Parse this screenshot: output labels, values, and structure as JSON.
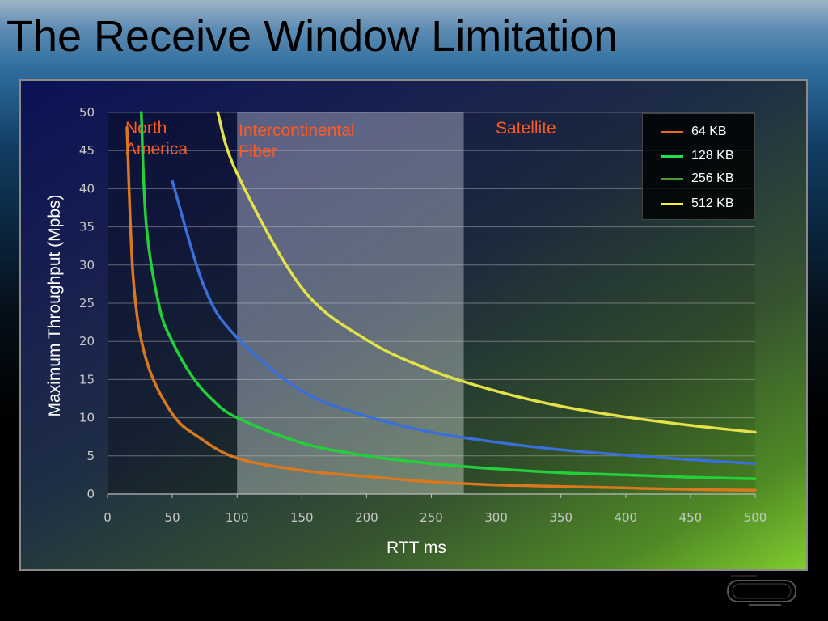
{
  "slide": {
    "title": "The Receive Window Limitation"
  },
  "chart_data": {
    "type": "line",
    "xlabel": "RTT ms",
    "ylabel": "Maximum Throughput (Mpbs)",
    "xlim": [
      0,
      500
    ],
    "ylim": [
      0,
      50
    ],
    "x_ticks": [
      "0",
      "50",
      "100",
      "150",
      "200",
      "250",
      "300",
      "350",
      "400",
      "450",
      "500"
    ],
    "y_ticks": [
      "0",
      "5",
      "10",
      "15",
      "20",
      "25",
      "30",
      "35",
      "40",
      "45",
      "50"
    ],
    "grid": "horizontal",
    "legend_position": "top-right",
    "regions": [
      {
        "label": "North America",
        "lines": [
          "North",
          "America"
        ],
        "x_range": [
          0,
          100
        ],
        "shade": "dark"
      },
      {
        "label": "Intercontinental Fiber",
        "lines": [
          "Intercontinental",
          "Fiber"
        ],
        "x_range": [
          100,
          275
        ],
        "shade": "light"
      },
      {
        "label": "Satellite",
        "lines": [
          "Satellite"
        ],
        "x_range": [
          275,
          500
        ],
        "shade": "medium"
      }
    ],
    "region_label_color": "#ff5a1f",
    "series": [
      {
        "name": "64 KB",
        "color": "#e86f1a",
        "window_kb": 64,
        "points": [
          [
            15,
            48
          ],
          [
            20,
            28
          ],
          [
            30,
            17.5
          ],
          [
            50,
            10.5
          ],
          [
            70,
            7.5
          ],
          [
            100,
            4.7
          ],
          [
            150,
            3.1
          ],
          [
            200,
            2.3
          ],
          [
            250,
            1.6
          ],
          [
            300,
            1.2
          ],
          [
            350,
            1.0
          ],
          [
            400,
            0.8
          ],
          [
            450,
            0.6
          ],
          [
            500,
            0.5
          ]
        ]
      },
      {
        "name": "128 KB",
        "color": "#22e04a",
        "window_kb": 128,
        "points": [
          [
            26,
            50
          ],
          [
            30,
            35
          ],
          [
            40,
            24.5
          ],
          [
            50,
            20
          ],
          [
            65,
            15.5
          ],
          [
            80,
            12.5
          ],
          [
            100,
            10
          ],
          [
            150,
            6.7
          ],
          [
            200,
            5
          ],
          [
            250,
            4
          ],
          [
            300,
            3.3
          ],
          [
            350,
            2.8
          ],
          [
            400,
            2.5
          ],
          [
            450,
            2.2
          ],
          [
            500,
            2
          ]
        ]
      },
      {
        "name": "256 KB",
        "color": "#4a9a2c",
        "window_kb": 256,
        "points": [
          [
            50,
            41
          ],
          [
            75,
            27
          ],
          [
            100,
            20.5
          ],
          [
            150,
            13.5
          ],
          [
            200,
            10.2
          ],
          [
            250,
            8.1
          ],
          [
            300,
            6.8
          ],
          [
            350,
            5.8
          ],
          [
            400,
            5.1
          ],
          [
            450,
            4.5
          ],
          [
            500,
            4
          ]
        ]
      },
      {
        "name": "512 KB",
        "color": "#f4f03a",
        "window_kb": 512,
        "points": [
          [
            85,
            50
          ],
          [
            100,
            42
          ],
          [
            150,
            27
          ],
          [
            200,
            20.2
          ],
          [
            250,
            16.2
          ],
          [
            300,
            13.5
          ],
          [
            350,
            11.5
          ],
          [
            400,
            10.1
          ],
          [
            450,
            9
          ],
          [
            500,
            8.1
          ]
        ]
      }
    ]
  },
  "colors": {
    "slide_bg_top": "#9fb4c6",
    "axis_text": "#c8c8c8",
    "curve_blue": "#3a6fd8"
  }
}
